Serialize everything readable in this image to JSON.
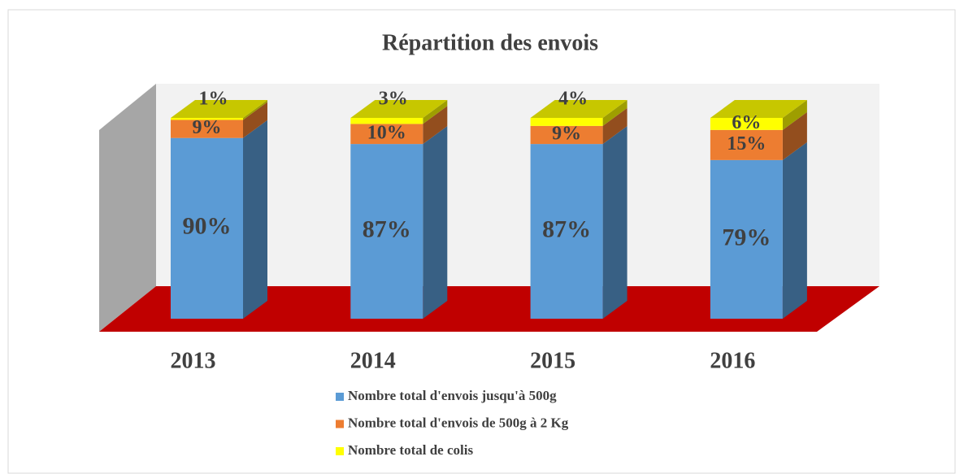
{
  "chart_data": {
    "type": "bar",
    "stacked": true,
    "title": "Répartition des envois",
    "categories": [
      "2013",
      "2014",
      "2015",
      "2016"
    ],
    "series": [
      {
        "name": "Nombre total d'envois jusqu'à 500g",
        "color": "#5b9bd5",
        "values": [
          90,
          87,
          87,
          79
        ],
        "value_labels": [
          "90%",
          "87%",
          "87%",
          "79%"
        ]
      },
      {
        "name": "Nombre total d'envois de 500g à 2 Kg",
        "color": "#ed7d31",
        "values": [
          9,
          10,
          9,
          15
        ],
        "value_labels": [
          "9%",
          "10%",
          "9%",
          "15%"
        ]
      },
      {
        "name": "Nombre total de colis",
        "color": "#ffff00",
        "values": [
          1,
          3,
          4,
          6
        ],
        "value_labels": [
          "1%",
          "3%",
          "4%",
          "6%"
        ]
      }
    ]
  }
}
